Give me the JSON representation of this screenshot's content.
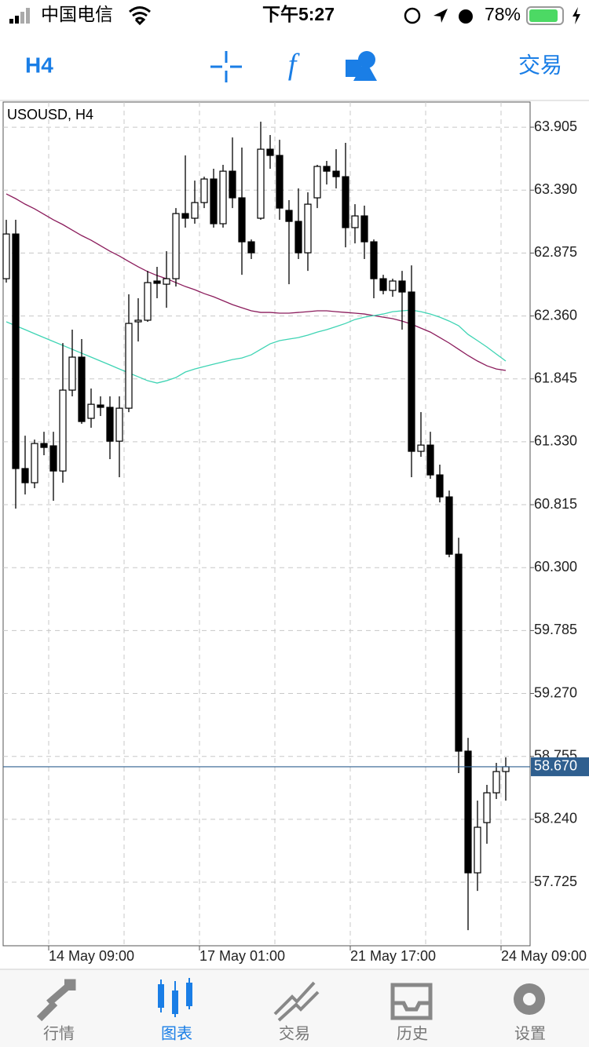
{
  "status_bar": {
    "carrier": "中国电信",
    "time": "下午5:27",
    "battery": "78%"
  },
  "toolbar": {
    "timeframe": "H4",
    "trade": "交易"
  },
  "tab_bar": {
    "tabs": [
      "行情",
      "图表",
      "交易",
      "历史",
      "设置"
    ],
    "active": 1
  },
  "chart_data": {
    "type": "candlestick",
    "title": "USOUSD, H4",
    "open": [
      62.665,
      63.031,
      61.111,
      60.995,
      61.316,
      61.297,
      61.091,
      61.753,
      62.023,
      61.522,
      61.631,
      61.612,
      61.335,
      61.605,
      62.312,
      62.325,
      62.646,
      62.62,
      62.665,
      63.198,
      63.16,
      63.288,
      63.481,
      63.115,
      63.545,
      63.327,
      62.967,
      63.16,
      63.725,
      63.674,
      63.224,
      63.134,
      62.877,
      63.327,
      63.584,
      63.545,
      63.5,
      63.083,
      63.179,
      62.967,
      62.665,
      62.569,
      62.646,
      62.556,
      61.252,
      61.303,
      61.059,
      60.879,
      60.41,
      58.798,
      57.802,
      58.213,
      58.457,
      58.631
    ],
    "high": [
      63.147,
      63.147,
      61.38,
      61.348,
      61.412,
      61.412,
      62.138,
      62.248,
      62.171,
      61.766,
      61.702,
      61.702,
      61.702,
      62.537,
      62.505,
      62.729,
      62.762,
      62.89,
      63.243,
      63.674,
      63.468,
      63.5,
      63.565,
      63.597,
      63.821,
      63.738,
      62.986,
      63.95,
      63.841,
      63.802,
      63.308,
      63.404,
      63.372,
      63.597,
      63.629,
      63.725,
      63.777,
      63.275,
      63.263,
      62.986,
      62.697,
      62.665,
      62.729,
      62.774,
      61.573,
      61.412,
      61.143,
      60.931,
      60.545,
      58.907,
      58.393,
      58.522,
      58.702,
      58.747
    ],
    "low": [
      62.633,
      60.783,
      60.899,
      60.95,
      61.22,
      60.847,
      60.995,
      61.702,
      61.477,
      61.445,
      61.541,
      61.188,
      61.04,
      61.573,
      62.151,
      62.312,
      62.505,
      62.427,
      62.601,
      63.083,
      63.115,
      63.243,
      63.083,
      63.083,
      63.243,
      62.697,
      62.826,
      63.147,
      63.565,
      63.147,
      62.62,
      62.826,
      62.729,
      63.243,
      63.436,
      63.404,
      62.922,
      62.954,
      62.826,
      62.505,
      62.537,
      62.517,
      62.248,
      61.04,
      61.207,
      61.027,
      60.834,
      60.385,
      58.618,
      57.333,
      57.654,
      58.04,
      58.406,
      58.393
    ],
    "close": [
      63.031,
      61.111,
      60.995,
      61.316,
      61.284,
      61.091,
      61.753,
      62.023,
      61.496,
      61.637,
      61.612,
      61.335,
      61.605,
      62.299,
      62.325,
      62.633,
      62.627,
      62.665,
      63.198,
      63.16,
      63.288,
      63.481,
      63.115,
      63.545,
      63.327,
      62.967,
      62.877,
      63.725,
      63.674,
      63.243,
      63.134,
      62.877,
      63.275,
      63.584,
      63.545,
      63.5,
      63.083,
      63.179,
      62.967,
      62.665,
      62.569,
      62.646,
      62.556,
      61.252,
      61.303,
      61.059,
      60.879,
      60.41,
      58.798,
      57.802,
      58.175,
      58.457,
      58.631,
      58.67
    ],
    "series": [
      {
        "color": "#8b1c5c",
        "values": [
          63.359,
          63.32,
          63.275,
          63.237,
          63.192,
          63.147,
          63.108,
          63.063,
          63.018,
          62.98,
          62.935,
          62.89,
          62.851,
          62.806,
          62.762,
          62.723,
          62.691,
          62.665,
          62.633,
          62.601,
          62.575,
          62.543,
          62.517,
          62.485,
          62.453,
          62.427,
          62.402,
          62.389,
          62.389,
          62.383,
          62.383,
          62.389,
          62.395,
          62.402,
          62.402,
          62.395,
          62.389,
          62.383,
          62.376,
          62.363,
          62.35,
          62.338,
          62.318,
          62.293,
          62.26,
          62.228,
          62.183,
          62.138,
          62.087,
          62.036,
          61.991,
          61.952,
          61.926,
          61.914
        ]
      },
      {
        "color": "#3fd4b4",
        "values": [
          62.312,
          62.28,
          62.248,
          62.215,
          62.183,
          62.151,
          62.119,
          62.087,
          62.055,
          62.023,
          61.991,
          61.959,
          61.926,
          61.894,
          61.862,
          61.83,
          61.811,
          61.83,
          61.856,
          61.901,
          61.926,
          61.946,
          61.965,
          61.984,
          62.003,
          62.016,
          62.042,
          62.087,
          62.132,
          62.158,
          62.171,
          62.183,
          62.203,
          62.228,
          62.248,
          62.273,
          62.299,
          62.331,
          62.35,
          62.363,
          62.376,
          62.395,
          62.402,
          62.408,
          62.395,
          62.376,
          62.35,
          62.318,
          62.28,
          62.209,
          62.158,
          62.106,
          62.048,
          61.991
        ]
      }
    ],
    "current_price": {
      "value": 58.67,
      "label": "58.670"
    },
    "xlim": [
      -0.333,
      55.583
    ],
    "ylim": [
      57.205,
      64.111
    ],
    "yticks": [
      63.905,
      {
        "value": 63.39,
        "label": "63.390"
      },
      62.875,
      {
        "value": 62.36,
        "label": "62.360"
      },
      61.845,
      {
        "value": 61.33,
        "label": "61.330"
      },
      60.815,
      {
        "value": 60.3,
        "label": "60.300"
      },
      59.785,
      {
        "value": 59.27,
        "label": "59.270"
      },
      58.755,
      {
        "value": 58.24,
        "label": "58.240"
      },
      57.725
    ],
    "xticks": [
      {
        "value": 4.5,
        "label": "14 May 09:00"
      },
      {
        "value": 20.5,
        "label": "17 May 01:00"
      },
      {
        "value": 36.5,
        "label": "21 May 17:00"
      },
      {
        "value": 52.5,
        "label": "24 May 09:00"
      }
    ],
    "x_minor_ticks": [
      12.5,
      28.5,
      44.5
    ],
    "grid": true
  }
}
